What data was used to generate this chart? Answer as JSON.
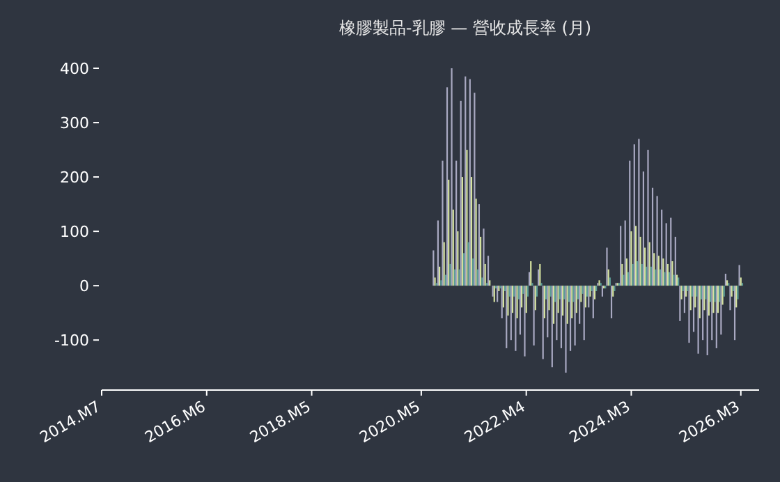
{
  "chart_data": {
    "type": "bar",
    "title": "橡膠製品-乳膠 — 營收成長率 (月)",
    "x": [
      "2020-08",
      "2020-09",
      "2020-10",
      "2020-11",
      "2020-12",
      "2021-01",
      "2021-02",
      "2021-03",
      "2021-04",
      "2021-05",
      "2021-06",
      "2021-07",
      "2021-08",
      "2021-09",
      "2021-10",
      "2021-11",
      "2021-12",
      "2022-01",
      "2022-02",
      "2022-03",
      "2022-04",
      "2022-05",
      "2022-06",
      "2022-07",
      "2022-08",
      "2022-09",
      "2022-10",
      "2022-11",
      "2022-12",
      "2023-01",
      "2023-02",
      "2023-03",
      "2023-04",
      "2023-05",
      "2023-06",
      "2023-07",
      "2023-08",
      "2023-09",
      "2023-10",
      "2023-11",
      "2023-12",
      "2024-01",
      "2024-02",
      "2024-03",
      "2024-04",
      "2024-05",
      "2024-06",
      "2024-07",
      "2024-08",
      "2024-09",
      "2024-10",
      "2024-11",
      "2024-12",
      "2025-01",
      "2025-02",
      "2025-03",
      "2025-04",
      "2025-05",
      "2025-06",
      "2025-07",
      "2025-08",
      "2025-09",
      "2025-10",
      "2025-11",
      "2025-12",
      "2026-01",
      "2026-02",
      "2026-03"
    ],
    "series": [
      {
        "color": "#a9a9c2",
        "values": [
          65,
          120,
          230,
          365,
          400,
          230,
          340,
          385,
          380,
          355,
          150,
          105,
          55,
          -20,
          -30,
          -60,
          -115,
          -100,
          -120,
          -90,
          -130,
          25,
          -110,
          30,
          -135,
          -95,
          -150,
          -100,
          -115,
          -160,
          -120,
          -110,
          -70,
          -100,
          -40,
          -60,
          5,
          -20,
          70,
          -60,
          5,
          110,
          120,
          230,
          260,
          270,
          210,
          250,
          180,
          165,
          140,
          115,
          125,
          90,
          -65,
          -50,
          -105,
          -85,
          -125,
          -100,
          -128,
          -100,
          -115,
          -90,
          22,
          -45,
          -100,
          38
        ]
      },
      {
        "color": "#d6e3a0",
        "values": [
          15,
          35,
          80,
          195,
          140,
          100,
          200,
          250,
          200,
          160,
          90,
          40,
          10,
          -30,
          -10,
          -40,
          -55,
          -50,
          -60,
          -40,
          -50,
          45,
          -45,
          40,
          -60,
          -45,
          -70,
          -50,
          -55,
          -70,
          -60,
          -50,
          -30,
          -40,
          -20,
          -25,
          10,
          -5,
          30,
          -20,
          5,
          40,
          50,
          100,
          110,
          90,
          70,
          80,
          60,
          55,
          50,
          40,
          45,
          20,
          -25,
          -20,
          -45,
          -40,
          -60,
          -45,
          -55,
          -50,
          -50,
          -35,
          10,
          -20,
          -40,
          15
        ]
      },
      {
        "color": "#5c9d97",
        "values": [
          5,
          10,
          20,
          40,
          30,
          30,
          60,
          80,
          50,
          30,
          15,
          5,
          0,
          -5,
          -5,
          -10,
          -20,
          -20,
          -25,
          -15,
          -20,
          5,
          -20,
          5,
          -25,
          -20,
          -30,
          -25,
          -25,
          -30,
          -30,
          -25,
          -15,
          -20,
          -10,
          -10,
          5,
          -5,
          15,
          -10,
          5,
          20,
          25,
          40,
          45,
          40,
          35,
          35,
          30,
          30,
          25,
          25,
          20,
          15,
          -10,
          -10,
          -20,
          -20,
          -25,
          -25,
          -30,
          -30,
          -30,
          -20,
          5,
          -10,
          -25,
          5
        ]
      }
    ],
    "xlim": [
      "2014-07",
      "2026-07"
    ],
    "xticks": [
      {
        "value": "2014-07",
        "label": "2014.M7"
      },
      {
        "value": "2016-06",
        "label": "2016.M6"
      },
      {
        "value": "2018-05",
        "label": "2018.M5"
      },
      {
        "value": "2020-05",
        "label": "2020.M5"
      },
      {
        "value": "2022-04",
        "label": "2022.M4"
      },
      {
        "value": "2024-03",
        "label": "2024.M3"
      },
      {
        "value": "2026-03",
        "label": "2026.M3"
      }
    ],
    "ylim": [
      -192,
      400
    ],
    "yticks": [
      -100,
      0,
      100,
      200,
      300,
      400
    ]
  }
}
